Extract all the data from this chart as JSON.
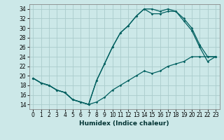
{
  "xlabel": "Humidex (Indice chaleur)",
  "bg_color": "#cce8e8",
  "grid_color": "#aacccc",
  "line_color": "#005f5f",
  "xlim": [
    -0.5,
    23.5
  ],
  "ylim": [
    13.0,
    35.0
  ],
  "yticks": [
    14,
    16,
    18,
    20,
    22,
    24,
    26,
    28,
    30,
    32,
    34
  ],
  "xticks": [
    0,
    1,
    2,
    3,
    4,
    5,
    6,
    7,
    8,
    9,
    10,
    11,
    12,
    13,
    14,
    15,
    16,
    17,
    18,
    19,
    20,
    21,
    22,
    23
  ],
  "line1_x": [
    0,
    1,
    2,
    3,
    4,
    5,
    6,
    7,
    8,
    9,
    10,
    11,
    12,
    13,
    14,
    15,
    16,
    17,
    18,
    19,
    20,
    21,
    22,
    23
  ],
  "line1_y": [
    19.5,
    18.5,
    18.0,
    17.0,
    16.5,
    15.0,
    14.5,
    14.0,
    19.0,
    22.5,
    26.0,
    29.0,
    30.5,
    32.5,
    34.0,
    34.0,
    33.5,
    34.0,
    33.5,
    32.0,
    30.0,
    26.5,
    24.0,
    24.0
  ],
  "line2_x": [
    0,
    1,
    2,
    3,
    4,
    5,
    6,
    7,
    8,
    9,
    10,
    11,
    12,
    13,
    14,
    15,
    16,
    17,
    18,
    19,
    20,
    21,
    22,
    23
  ],
  "line2_y": [
    19.5,
    18.5,
    18.0,
    17.0,
    16.5,
    15.0,
    14.5,
    14.0,
    19.0,
    22.5,
    26.0,
    29.0,
    30.5,
    32.5,
    34.0,
    33.0,
    33.0,
    33.5,
    33.5,
    31.5,
    29.5,
    26.0,
    23.0,
    24.0
  ],
  "line3_x": [
    0,
    1,
    2,
    3,
    4,
    5,
    6,
    7,
    8,
    9,
    10,
    11,
    12,
    13,
    14,
    15,
    16,
    17,
    18,
    19,
    20,
    21,
    22,
    23
  ],
  "line3_y": [
    19.5,
    18.5,
    18.0,
    17.0,
    16.5,
    15.0,
    14.5,
    14.0,
    14.5,
    15.5,
    17.0,
    18.0,
    19.0,
    20.0,
    21.0,
    20.5,
    21.0,
    22.0,
    22.5,
    23.0,
    24.0,
    24.0,
    24.0,
    24.0
  ]
}
